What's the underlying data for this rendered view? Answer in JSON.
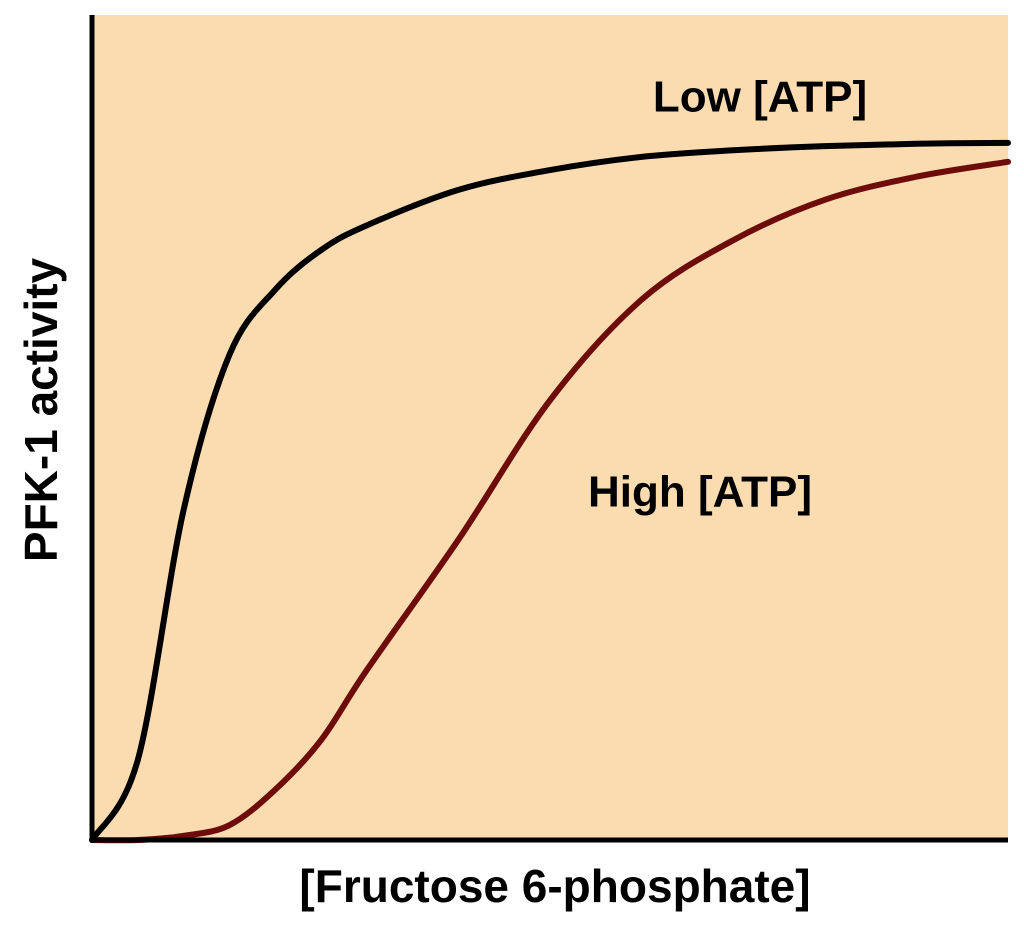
{
  "chart_data": {
    "type": "line",
    "x_label": "[Fructose 6-phosphate]",
    "y_label": "PFK-1 activity",
    "xlim": [
      0,
      100
    ],
    "ylim": [
      0,
      100
    ],
    "x": [
      0,
      5,
      10,
      15,
      20,
      25,
      30,
      40,
      50,
      60,
      70,
      80,
      90,
      100
    ],
    "series": [
      {
        "name": "Low [ATP]",
        "color": "#000000",
        "values": [
          0,
          9.7,
          40,
          58.8,
          66.7,
          71.5,
          74.5,
          78.8,
          81.2,
          82.8,
          83.6,
          84.1,
          84.4,
          84.5
        ]
      },
      {
        "name": "High [ATP]",
        "color": "#6e0c0c",
        "values": [
          0,
          0,
          0.5,
          1.8,
          6.1,
          12.1,
          20.6,
          36.4,
          53.3,
          65.5,
          72.7,
          77.6,
          80.4,
          82.2
        ]
      }
    ]
  }
}
